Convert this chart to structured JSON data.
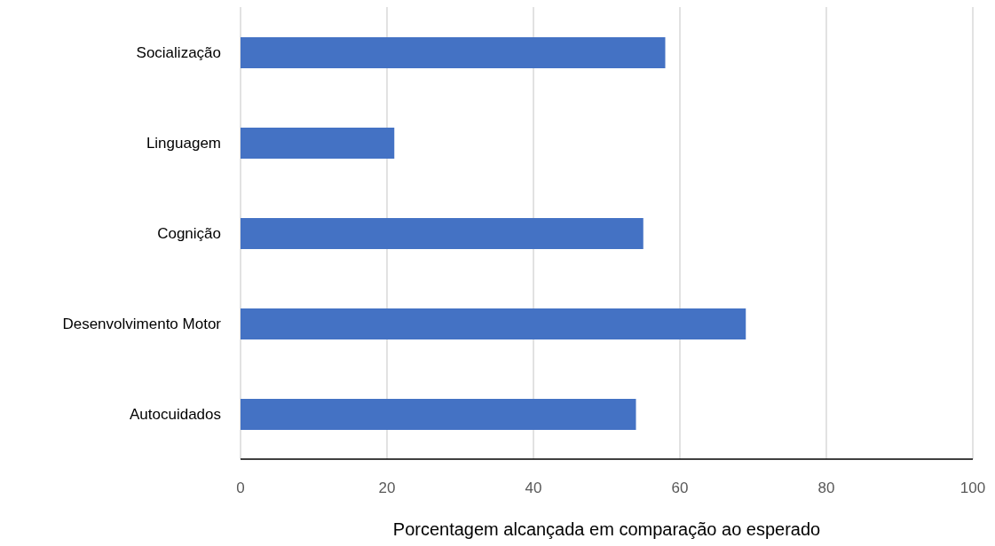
{
  "chart_data": {
    "type": "bar",
    "orientation": "horizontal",
    "xlabel": "Porcentagem alcançada em comparação ao esperado",
    "categories": [
      "Socialização",
      "Linguagem",
      "Cognição",
      "Desenvolvimento Motor",
      "Autocuidados"
    ],
    "values": [
      58,
      21,
      55,
      69,
      54
    ],
    "color": "#4472c4",
    "xlim": [
      0,
      100
    ],
    "xticks": [
      0,
      20,
      40,
      60,
      80,
      100
    ],
    "grid": "x",
    "legend": false
  }
}
